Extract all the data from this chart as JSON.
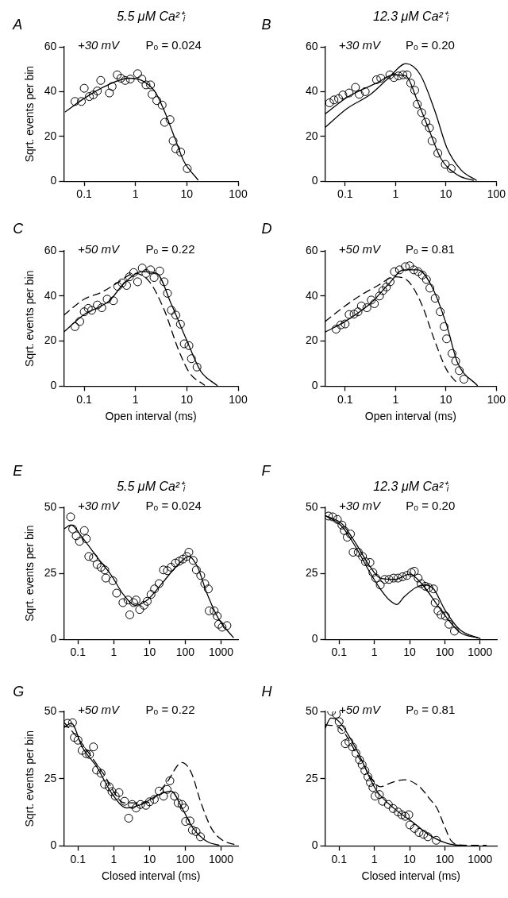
{
  "chart_data": [
    {
      "type": "scatter",
      "title": "5.5 μM Ca²⁺ᵢ",
      "ylabel": "Sqrt. events per bin",
      "annotations": [
        "A",
        "+30 mV",
        "Pₒ = 0.024"
      ],
      "log": "x",
      "xlim": [
        0.04,
        100
      ],
      "xticks": [
        0.1,
        1,
        10,
        100
      ],
      "ylim": [
        0,
        60
      ],
      "yticks": [
        0,
        20,
        40,
        60
      ],
      "series": [
        {
          "marker": "circle",
          "color": "#000000",
          "x": [
            0.066,
            0.088,
            0.1,
            0.126,
            0.15,
            0.18,
            0.21,
            0.31,
            0.35,
            0.44,
            0.52,
            0.63,
            0.79,
            1.1,
            1.33,
            1.6,
            1.96,
            2.1,
            2.6,
            3.3,
            3.7,
            4.7,
            5.4,
            6.1,
            7.6,
            10.2
          ],
          "values": [
            35.6,
            35.6,
            41.5,
            37.8,
            38.5,
            40.3,
            45,
            39.4,
            42.3,
            47.5,
            46,
            45,
            45.6,
            48,
            45.6,
            43,
            43,
            38.8,
            36,
            34,
            26.3,
            27.5,
            18,
            14.4,
            13,
            5.6
          ]
        },
        {
          "type": "line",
          "color": "#000000",
          "x": [
            0.043,
            0.1,
            0.26,
            0.74,
            1.33,
            2.4,
            3.7,
            5.9,
            8.7,
            16.5
          ],
          "values": [
            31,
            37,
            42.5,
            46,
            45,
            40,
            31,
            19,
            9,
            0.6
          ]
        }
      ]
    },
    {
      "type": "scatter",
      "title": "12.3 μM Ca²⁺ᵢ",
      "annotations": [
        "B",
        "+30 mV",
        "Pₒ = 0.20"
      ],
      "log": "x",
      "xlim": [
        0.04,
        100
      ],
      "xticks": [
        0.1,
        1,
        10,
        100
      ],
      "ylim": [
        0,
        60
      ],
      "yticks": [
        0,
        20,
        40,
        60
      ],
      "series": [
        {
          "marker": "circle",
          "color": "#000000",
          "x": [
            0.049,
            0.06,
            0.074,
            0.09,
            0.12,
            0.16,
            0.19,
            0.25,
            0.42,
            0.51,
            0.77,
            0.93,
            1.14,
            1.4,
            1.7,
            2.0,
            2.4,
            2.7,
            3.3,
            4.0,
            4.7,
            5.3,
            6.9,
            9.7,
            12.7
          ],
          "values": [
            35,
            36.3,
            36.9,
            38.5,
            39.4,
            41.9,
            38.8,
            40,
            45.3,
            46,
            47.5,
            46.3,
            47,
            47.5,
            47.5,
            43.8,
            40.6,
            34.4,
            30.6,
            26.3,
            23.8,
            18,
            12.5,
            7.5,
            5.6
          ]
        },
        {
          "type": "line",
          "color": "#000000",
          "x": [
            0.04,
            0.11,
            0.42,
            0.93,
            1.6,
            2.7,
            4.7,
            8,
            17.8,
            35
          ],
          "values": [
            30,
            37.5,
            43.8,
            47.5,
            47,
            36,
            22.5,
            10,
            2.5,
            0.4
          ]
        },
        {
          "type": "line",
          "color": "#000000",
          "x": [
            0.04,
            0.11,
            0.32,
            0.72,
            1.6,
            3.1,
            6.1,
            10.4,
            20,
            40
          ],
          "values": [
            24,
            32.5,
            38.8,
            46,
            52.5,
            47.5,
            31,
            15,
            5,
            0.4
          ]
        }
      ]
    },
    {
      "type": "scatter",
      "xlabel": "Open interval (ms)",
      "ylabel": "Sqrt. events per bin",
      "annotations": [
        "C",
        "+50 mV",
        "Pₒ = 0.22"
      ],
      "log": "x",
      "xlim": [
        0.04,
        100
      ],
      "xticks": [
        0.1,
        1,
        10,
        100
      ],
      "ylim": [
        0,
        60
      ],
      "yticks": [
        0,
        20,
        40,
        60
      ],
      "series": [
        {
          "marker": "circle",
          "color": "#000000",
          "x": [
            0.066,
            0.082,
            0.1,
            0.12,
            0.14,
            0.18,
            0.22,
            0.28,
            0.37,
            0.45,
            0.55,
            0.67,
            0.76,
            0.92,
            1.1,
            1.35,
            1.6,
            1.96,
            2.3,
            2.96,
            3.6,
            4.2,
            5.0,
            6.1,
            7.5,
            8.9,
            11,
            12.3,
            15.8
          ],
          "values": [
            26.4,
            28.7,
            33,
            34.5,
            33.7,
            36,
            34.8,
            38.6,
            37.9,
            44.3,
            45.8,
            44.7,
            48.5,
            50.4,
            46.3,
            52.4,
            50,
            51.6,
            48.2,
            51.1,
            46.3,
            41.2,
            33.7,
            31.5,
            27.5,
            18.8,
            18,
            12.2,
            8.5
          ]
        },
        {
          "type": "line",
          "color": "#000000",
          "x": [
            0.04,
            0.1,
            0.31,
            0.59,
            1.35,
            2.6,
            5,
            9.7,
            18.7,
            39
          ],
          "values": [
            24,
            31.8,
            37.9,
            45.5,
            50.8,
            50,
            36.3,
            21,
            6.6,
            0.3
          ]
        },
        {
          "type": "line",
          "color": "#000000",
          "line_style": "dashed",
          "x": [
            0.04,
            0.1,
            0.22,
            0.42,
            0.97,
            1.87,
            3.6,
            7,
            11.4,
            22
          ],
          "values": [
            31.5,
            38.6,
            41.7,
            45.5,
            50,
            46.3,
            34,
            15.7,
            5.8,
            0.5
          ]
        }
      ]
    },
    {
      "type": "scatter",
      "xlabel": "Open interval (ms)",
      "annotations": [
        "D",
        "+50 mV",
        "Pₒ = 0.81"
      ],
      "log": "x",
      "xlim": [
        0.04,
        100
      ],
      "xticks": [
        0.1,
        1,
        10,
        100
      ],
      "ylim": [
        0,
        60
      ],
      "yticks": [
        0,
        20,
        40,
        60
      ],
      "series": [
        {
          "marker": "circle",
          "color": "#000000",
          "x": [
            0.066,
            0.082,
            0.1,
            0.12,
            0.15,
            0.18,
            0.21,
            0.27,
            0.33,
            0.38,
            0.48,
            0.56,
            0.66,
            0.78,
            0.95,
            1.2,
            1.56,
            1.9,
            2.3,
            2.8,
            3.4,
            4.1,
            4.8,
            6.1,
            7.7,
            9.2,
            10.3,
            13.2,
            15.6,
            18.4,
            22.7
          ],
          "values": [
            25.3,
            27.2,
            27.6,
            31.8,
            32,
            33,
            35.6,
            34.8,
            38.2,
            36.6,
            40,
            42.4,
            44,
            46.3,
            50.8,
            51.6,
            53,
            53.4,
            51.6,
            50.8,
            49.3,
            47.3,
            43.5,
            39,
            33,
            26.4,
            21,
            14.5,
            11.1,
            6.9,
            3.1
          ]
        },
        {
          "type": "line",
          "color": "#000000",
          "x": [
            0.04,
            0.1,
            0.33,
            0.74,
            1.44,
            2.8,
            5.3,
            10.3,
            17,
            42
          ],
          "values": [
            24,
            28.7,
            37,
            45.5,
            51.6,
            51.6,
            44,
            27.2,
            10.4,
            0.3
          ]
        },
        {
          "type": "line",
          "color": "#000000",
          "line_style": "dashed",
          "x": [
            0.04,
            0.1,
            0.2,
            0.45,
            0.95,
            1.7,
            3.3,
            5.8,
            10.3,
            17
          ],
          "values": [
            28.7,
            35.6,
            40.2,
            44.7,
            48.5,
            47,
            36.3,
            21,
            7.3,
            1.2
          ]
        }
      ]
    },
    {
      "type": "scatter",
      "title": "5.5 μM Ca²⁺ᵢ",
      "ylabel": "Sqrt. events per bin",
      "annotations": [
        "E",
        "+30 mV",
        "Pₒ = 0.024"
      ],
      "log": "x",
      "xlim": [
        0.04,
        3000
      ],
      "xticks": [
        0.1,
        1,
        10,
        100,
        1000
      ],
      "ylim": [
        0,
        50
      ],
      "yticks": [
        0,
        25,
        50
      ],
      "series": [
        {
          "marker": "circle",
          "color": "#000000",
          "x": [
            0.062,
            0.071,
            0.089,
            0.11,
            0.15,
            0.17,
            0.2,
            0.27,
            0.34,
            0.44,
            0.56,
            0.6,
            0.94,
            1.2,
            1.8,
            2.5,
            2.8,
            3.6,
            4.2,
            5.3,
            7,
            8.6,
            11,
            13.8,
            18.5,
            24.5,
            31.6,
            40,
            53,
            68,
            86,
            110,
            126,
            166,
            204,
            270,
            350,
            440,
            465,
            640,
            780,
            860,
            1070,
            1460
          ],
          "values": [
            46.4,
            41.8,
            39.2,
            37.1,
            41.2,
            38.1,
            31.4,
            30.9,
            28.4,
            27.3,
            26.3,
            23.2,
            22.2,
            17.5,
            13.9,
            14.9,
            9.3,
            13.9,
            14.9,
            11.3,
            12.9,
            14.4,
            17,
            19.1,
            21.1,
            26.3,
            26,
            27.3,
            28.9,
            29.6,
            30.4,
            31.4,
            33,
            29.9,
            26.3,
            24.2,
            21.1,
            19.1,
            10.8,
            10.8,
            8.8,
            5.7,
            4.6,
            5.2
          ]
        },
        {
          "type": "line",
          "color": "#000000",
          "x": [
            0.04,
            0.064,
            0.13,
            0.33,
            0.86,
            1.85,
            4,
            8.6,
            22,
            58,
            126,
            222,
            400,
            860,
            2200
          ],
          "values": [
            41.8,
            43.3,
            38.7,
            31.4,
            24.2,
            17,
            12.9,
            14.9,
            21.1,
            27.8,
            31.4,
            27.3,
            17.5,
            7.7,
            0.7
          ]
        }
      ]
    },
    {
      "type": "scatter",
      "title": "12.3 μM Ca²⁺ᵢ",
      "annotations": [
        "F",
        "+30 mV",
        "Pₒ = 0.20"
      ],
      "log": "x",
      "xlim": [
        0.04,
        3000
      ],
      "xticks": [
        0.1,
        1,
        10,
        100,
        1000
      ],
      "ylim": [
        0,
        50
      ],
      "yticks": [
        0,
        25,
        50
      ],
      "series": [
        {
          "marker": "circle",
          "color": "#000000",
          "x": [
            0.05,
            0.066,
            0.089,
            0.12,
            0.14,
            0.17,
            0.21,
            0.25,
            0.35,
            0.46,
            0.56,
            0.75,
            0.91,
            1.1,
            1.47,
            1.97,
            2.6,
            3.5,
            4.7,
            6.3,
            8.4,
            11.2,
            13.6,
            17.5,
            21.2,
            28,
            35,
            48,
            53,
            64,
            78,
            104,
            131,
            187
          ],
          "values": [
            46.7,
            46.4,
            45.4,
            43.3,
            41.2,
            38.7,
            39.9,
            33,
            33,
            31.4,
            29.4,
            29.1,
            25.3,
            23.2,
            20.6,
            22.7,
            22.7,
            23.2,
            23.2,
            23.7,
            24.2,
            25.3,
            25.8,
            23.2,
            21.1,
            20.1,
            19.6,
            19.1,
            13.9,
            10.8,
            9.3,
            8.8,
            5.7,
            3.1
          ]
        },
        {
          "type": "line",
          "color": "#000000",
          "x": [
            0.04,
            0.12,
            0.31,
            0.68,
            1.47,
            3.9,
            10,
            22,
            48,
            104,
            270,
            870
          ],
          "values": [
            46.9,
            43.8,
            36,
            28.4,
            23.2,
            22.7,
            24.7,
            21.1,
            15,
            8.8,
            2.6,
            0.5
          ]
        },
        {
          "type": "line",
          "color": "#000000",
          "x": [
            0.04,
            0.12,
            0.31,
            0.68,
            1.47,
            2.6,
            4.3,
            6.9,
            15,
            27,
            48,
            104,
            270,
            1000
          ],
          "values": [
            46.9,
            42.8,
            34.5,
            26.3,
            19.1,
            15,
            13.2,
            16,
            19.6,
            20.6,
            19.1,
            10.8,
            3.6,
            0.3
          ]
        }
      ]
    },
    {
      "type": "scatter",
      "xlabel": "Closed interval (ms)",
      "ylabel": "Sqrt. events per bin",
      "annotations": [
        "G",
        "+50 mV",
        "Pₒ = 0.22"
      ],
      "log": "x",
      "xlim": [
        0.04,
        3000
      ],
      "xticks": [
        0.1,
        1,
        10,
        100,
        1000
      ],
      "ylim": [
        0,
        50
      ],
      "yticks": [
        0,
        25,
        50
      ],
      "series": [
        {
          "marker": "circle",
          "color": "#000000",
          "x": [
            0.051,
            0.07,
            0.079,
            0.1,
            0.13,
            0.17,
            0.21,
            0.27,
            0.33,
            0.44,
            0.55,
            0.74,
            0.89,
            1.1,
            1.4,
            2.0,
            2.6,
            3.3,
            4.2,
            5.6,
            7.9,
            10,
            13.6,
            18.6,
            24.6,
            31,
            37,
            50,
            63,
            81,
            95,
            102,
            135,
            158,
            200,
            265
          ],
          "values": [
            45.6,
            45.8,
            40.3,
            39.3,
            35.5,
            34.3,
            34,
            36.8,
            28.2,
            27,
            22.9,
            22,
            20.2,
            18.5,
            19.8,
            16.6,
            10.3,
            15.4,
            14.1,
            15.4,
            15.1,
            16.4,
            17.3,
            20.4,
            18.5,
            21,
            24.2,
            18.5,
            16,
            15.4,
            14.1,
            9.1,
            9.3,
            5.9,
            5.3,
            3.4
          ]
        },
        {
          "type": "line",
          "color": "#000000",
          "x": [
            0.04,
            0.065,
            0.13,
            0.34,
            0.89,
            2.3,
            5.9,
            15,
            40,
            81,
            166,
            420,
            870
          ],
          "values": [
            44,
            45.6,
            36.8,
            29.2,
            19.4,
            14.1,
            15.4,
            18.5,
            20.4,
            14.1,
            6.5,
            1.5,
            0.3
          ]
        },
        {
          "type": "line",
          "color": "#000000",
          "line_style": "dashed",
          "x": [
            0.04,
            0.1,
            0.5,
            2,
            8,
            30,
            80,
            150,
            265,
            540,
            1100,
            2800
          ],
          "values": [
            46,
            40,
            27,
            16,
            16,
            23.5,
            31,
            27,
            16.6,
            6.5,
            2.1,
            0.3
          ]
        }
      ]
    },
    {
      "type": "scatter",
      "xlabel": "Closed interval (ms)",
      "annotations": [
        "H",
        "+50 mV",
        "Pₒ = 0.81"
      ],
      "log": "x",
      "xlim": [
        0.04,
        3000
      ],
      "xticks": [
        0.1,
        1,
        10,
        100,
        1000
      ],
      "ylim": [
        0,
        50
      ],
      "yticks": [
        0,
        25,
        50
      ],
      "series": [
        {
          "marker": "circle",
          "color": "#000000",
          "x": [
            0.061,
            0.083,
            0.1,
            0.12,
            0.15,
            0.19,
            0.24,
            0.3,
            0.38,
            0.45,
            0.54,
            0.66,
            0.77,
            0.91,
            1.05,
            1.39,
            1.7,
            2.5,
            3.4,
            4.7,
            6,
            7.5,
            9.5,
            10.2,
            13.8,
            18.5,
            25,
            33,
            57
          ],
          "values": [
            50,
            49,
            46.2,
            43.3,
            38,
            38.7,
            36.8,
            34.5,
            32,
            30.2,
            28,
            25.7,
            23.6,
            21.7,
            18.5,
            19.1,
            16.6,
            15.4,
            13.9,
            12.6,
            11.6,
            11,
            11.6,
            7.8,
            6.5,
            5,
            4.3,
            3.4,
            2.1
          ]
        },
        {
          "type": "line",
          "color": "#000000",
          "x": [
            0.04,
            0.058,
            0.1,
            0.34,
            1.1,
            3.5,
            11.5,
            37,
            120,
            390
          ],
          "values": [
            43.7,
            47.5,
            46.2,
            34.8,
            21,
            14.1,
            9.1,
            4,
            0.9,
            0
          ]
        },
        {
          "type": "line",
          "color": "#000000",
          "line_style": "dashed",
          "x": [
            0.04,
            0.1,
            0.4,
            1.5,
            3,
            7,
            18,
            40,
            60,
            100,
            150,
            300,
            1500
          ],
          "values": [
            45,
            44,
            32,
            22,
            23.5,
            24.6,
            22.3,
            17,
            14,
            7,
            2,
            0.3,
            0.2
          ]
        }
      ]
    }
  ]
}
